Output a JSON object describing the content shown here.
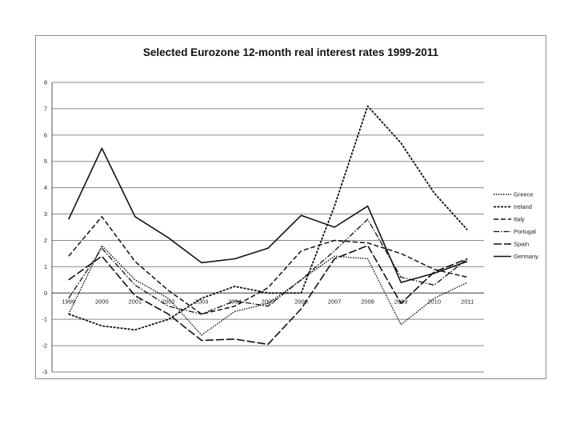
{
  "chart_data": {
    "type": "line",
    "title": "Selected Eurozone 12-month real interest rates 1999-2011",
    "xlabel": "",
    "ylabel": "",
    "x": [
      "1999",
      "2000",
      "2001",
      "2002",
      "2003",
      "2004",
      "2005",
      "2006",
      "2007",
      "2008",
      "2009",
      "2010",
      "2011"
    ],
    "ylim": [
      -3,
      8
    ],
    "yticks": [
      "-3",
      "-2",
      "-1",
      "0",
      "1",
      "2",
      "3",
      "4",
      "5",
      "6",
      "7",
      "8"
    ],
    "grid": true,
    "legend_position": "right",
    "series": [
      {
        "name": "Greece",
        "dash": "1.5,1.5",
        "width": 1.4,
        "values": [
          -0.8,
          1.8,
          0.5,
          -0.2,
          -1.6,
          -0.7,
          -0.4,
          0.5,
          1.4,
          1.3,
          -1.2,
          -0.2,
          0.4
        ]
      },
      {
        "name": "Ireland",
        "dash": "3,1.5",
        "width": 1.8,
        "values": [
          -0.8,
          -1.25,
          -1.4,
          -1.0,
          -0.2,
          0.25,
          0.0,
          0.0,
          3.3,
          7.1,
          5.7,
          3.8,
          2.4
        ]
      },
      {
        "name": "Italy",
        "dash": "6,3",
        "width": 1.5,
        "values": [
          1.4,
          2.9,
          1.2,
          0.1,
          -0.8,
          -0.5,
          0.2,
          1.6,
          2.0,
          1.9,
          1.5,
          0.9,
          0.6
        ]
      },
      {
        "name": "Portugal",
        "dash": "7,2,1.5,2",
        "width": 1.3,
        "values": [
          -0.2,
          1.7,
          0.3,
          -0.5,
          -0.8,
          -0.3,
          -0.5,
          0.5,
          1.6,
          2.8,
          0.6,
          0.3,
          1.3
        ]
      },
      {
        "name": "Spain",
        "dash": "10,3",
        "width": 1.6,
        "values": [
          0.5,
          1.4,
          -0.1,
          -0.8,
          -1.8,
          -1.75,
          -1.95,
          -0.6,
          1.3,
          1.8,
          -0.4,
          0.8,
          1.3
        ]
      },
      {
        "name": "Germany",
        "dash": "",
        "width": 1.6,
        "values": [
          2.8,
          5.5,
          2.9,
          2.1,
          1.15,
          1.3,
          1.7,
          2.95,
          2.5,
          3.3,
          0.4,
          0.75,
          1.2
        ]
      }
    ]
  }
}
